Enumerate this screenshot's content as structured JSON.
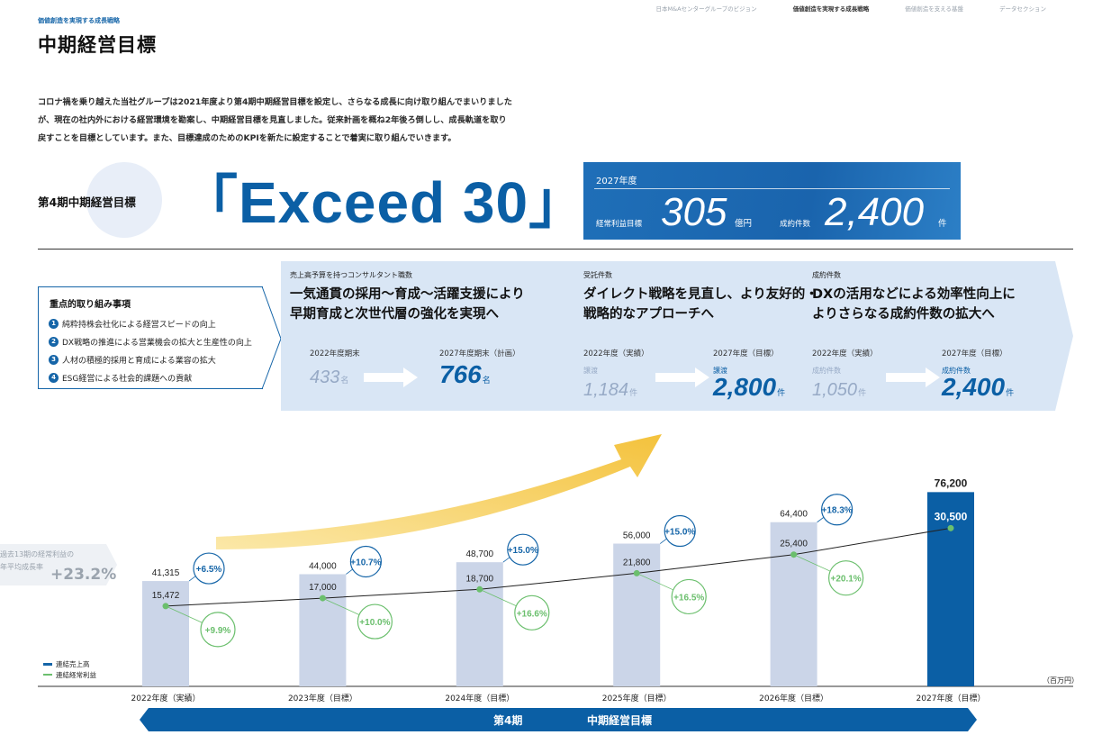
{
  "nav": {
    "items": [
      "日本M&Aセンターグループのビジョン",
      "価値創造を実現する成長戦略",
      "価値創造を支える基盤",
      "データセクション"
    ],
    "active_index": 1
  },
  "header": {
    "section": "価値創造を実現する成長戦略",
    "title": "中期経営目標"
  },
  "intro": {
    "text": "コロナ禍を乗り越えた当社グループは2021年度より第4期中期経営目標を設定し、さらなる成長に向け取り組んでまいりましたが、現在の社内外における経営環境を勘案し、中期経営目標を見直しました。従来計画を概ね2年後ろ倒しし、成長軌道を取り戻すことを目標としています。また、目標達成のためのKPIを新たに設定することで着実に取り組んでいきます。"
  },
  "plan": {
    "label": "第4期中期経営目標",
    "name": "「Exceed 30」"
  },
  "target": {
    "year": "2027年度",
    "profit_label": "経常利益目標",
    "profit_value": "305",
    "profit_unit": "億円",
    "deals_label": "成約件数",
    "deals_value": "2,400",
    "deals_unit": "件"
  },
  "focus": {
    "title": "重点的取り組み事項",
    "items": [
      {
        "num": "1",
        "text": "純粋持株会社化による経営スピードの向上"
      },
      {
        "num": "2",
        "text": "DX戦略の推進による営業機会の拡大と生産性の向上"
      },
      {
        "num": "3",
        "text": "人材の積極的採用と育成による業容の拡大"
      },
      {
        "num": "4",
        "text": "ESG経営による社会的課題への貢献"
      }
    ]
  },
  "kpis": [
    {
      "caption": "売上高予算を持つコンサルタント職数",
      "headline1": "一気通貫の採用〜育成〜活躍支援により",
      "headline2": "早期育成と次世代層の強化を実現へ",
      "from_title": "2022年度期末",
      "from_sub": "",
      "from_value": "433",
      "from_unit": "名",
      "to_title": "2027年度期末（計画）",
      "to_sub": "",
      "to_value": "766",
      "to_unit": "名"
    },
    {
      "caption": "受託件数",
      "headline1": "ダイレクト戦略を見直し、より友好的・",
      "headline2": "戦略的なアプローチへ",
      "from_title": "2022年度（実績）",
      "from_sub": "譲渡",
      "from_value": "1,184",
      "from_unit": "件",
      "to_title": "2027年度（目標）",
      "to_sub": "譲渡",
      "to_value": "2,800",
      "to_unit": "件"
    },
    {
      "caption": "成約件数",
      "headline1": "DXの活用などによる効率性向上に",
      "headline2": "よりさらなる成約件数の拡大へ",
      "from_title": "2022年度（実績）",
      "from_sub": "成約件数",
      "from_value": "1,050",
      "from_unit": "件",
      "to_title": "2027年度（目標）",
      "to_sub": "成約件数",
      "to_value": "2,400",
      "to_unit": "件"
    }
  ],
  "avg_growth": {
    "line1": "過去13期の経常利益の",
    "line2": "年平均成長率",
    "value": "+23.2%"
  },
  "legend": {
    "sales": "連結売上高",
    "profit": "連結経常利益"
  },
  "unit_label": "（百万円）",
  "period_bar": {
    "left": "第4期",
    "right": "中期経営目標"
  },
  "colors": {
    "accent": "#1565a8",
    "bar": "#cbd5e8",
    "bar_final": "#0b5fa5",
    "profit_line": "#6bbf6d"
  },
  "chart_data": {
    "type": "bar",
    "categories": [
      "2022年度（実績）",
      "2023年度（目標）",
      "2024年度（目標）",
      "2025年度（目標）",
      "2026年度（目標）",
      "2027年度（目標）"
    ],
    "series": [
      {
        "name": "連結売上高",
        "values": [
          41315,
          44000,
          48700,
          56000,
          64400,
          76200
        ],
        "labels": [
          "41,315",
          "44,000",
          "48,700",
          "56,000",
          "64,400",
          "76,200"
        ],
        "growth": [
          "+6.5%",
          "+10.7%",
          "+15.0%",
          "+15.0%",
          "+18.3%",
          ""
        ]
      },
      {
        "name": "連結経常利益",
        "values": [
          15472,
          17000,
          18700,
          21800,
          25400,
          30500
        ],
        "labels": [
          "15,472",
          "17,000",
          "18,700",
          "21,800",
          "25,400",
          "30,500"
        ],
        "growth": [
          "+9.9%",
          "+10.0%",
          "+16.6%",
          "+16.5%",
          "+20.1%",
          ""
        ]
      }
    ],
    "ylabel": "（百万円）"
  }
}
